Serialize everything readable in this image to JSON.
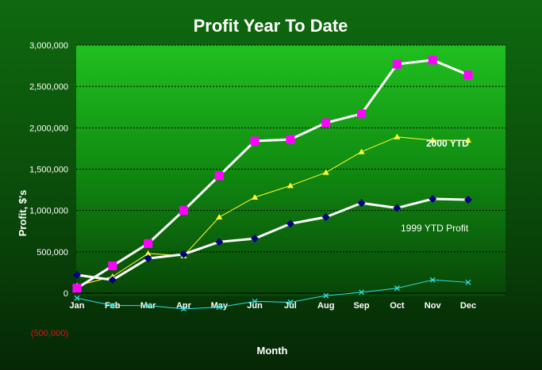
{
  "chart_data": {
    "type": "line",
    "title": "Profit Year To Date",
    "xlabel": "Month",
    "ylabel": "Profit, $'s",
    "ylim": [
      -500000,
      3000000
    ],
    "y_ticks": [
      3000000,
      2500000,
      2000000,
      1500000,
      1000000,
      500000,
      0,
      -500000
    ],
    "y_tick_labels": [
      "3,000,000",
      "2,500,000",
      "2,000,000",
      "1,500,000",
      "1,000,000",
      "500,000",
      "0",
      "(500,000)"
    ],
    "categories": [
      "Jan",
      "Feb",
      "Mar",
      "Apr",
      "May",
      "Jun",
      "Jul",
      "Aug",
      "Sep",
      "Oct",
      "Nov",
      "Dec"
    ],
    "grid": true,
    "series": [
      {
        "name": "",
        "color": "#ffffff",
        "marker": "square",
        "marker_color": "#ff00ff",
        "values": [
          60000,
          330000,
          600000,
          1000000,
          1420000,
          1840000,
          1860000,
          2060000,
          2170000,
          2770000,
          2820000,
          2640000
        ]
      },
      {
        "name": "2000 YTD",
        "color": "#ffff33",
        "marker": "triangle",
        "marker_color": "#ffff33",
        "values": [
          90000,
          200000,
          480000,
          450000,
          920000,
          1160000,
          1300000,
          1460000,
          1710000,
          1890000,
          1850000,
          1850000
        ]
      },
      {
        "name": "1999 YTD Profit",
        "color": "#ffffff",
        "marker": "diamond",
        "marker_color": "#000080",
        "values": [
          220000,
          160000,
          420000,
          470000,
          620000,
          660000,
          840000,
          920000,
          1090000,
          1030000,
          1140000,
          1130000
        ]
      },
      {
        "name": "",
        "color": "#33e0e0",
        "marker": "x",
        "marker_color": "#33e0e0",
        "values": [
          -60000,
          -150000,
          -150000,
          -190000,
          -170000,
          -100000,
          -110000,
          -30000,
          10000,
          60000,
          160000,
          130000
        ]
      }
    ]
  }
}
